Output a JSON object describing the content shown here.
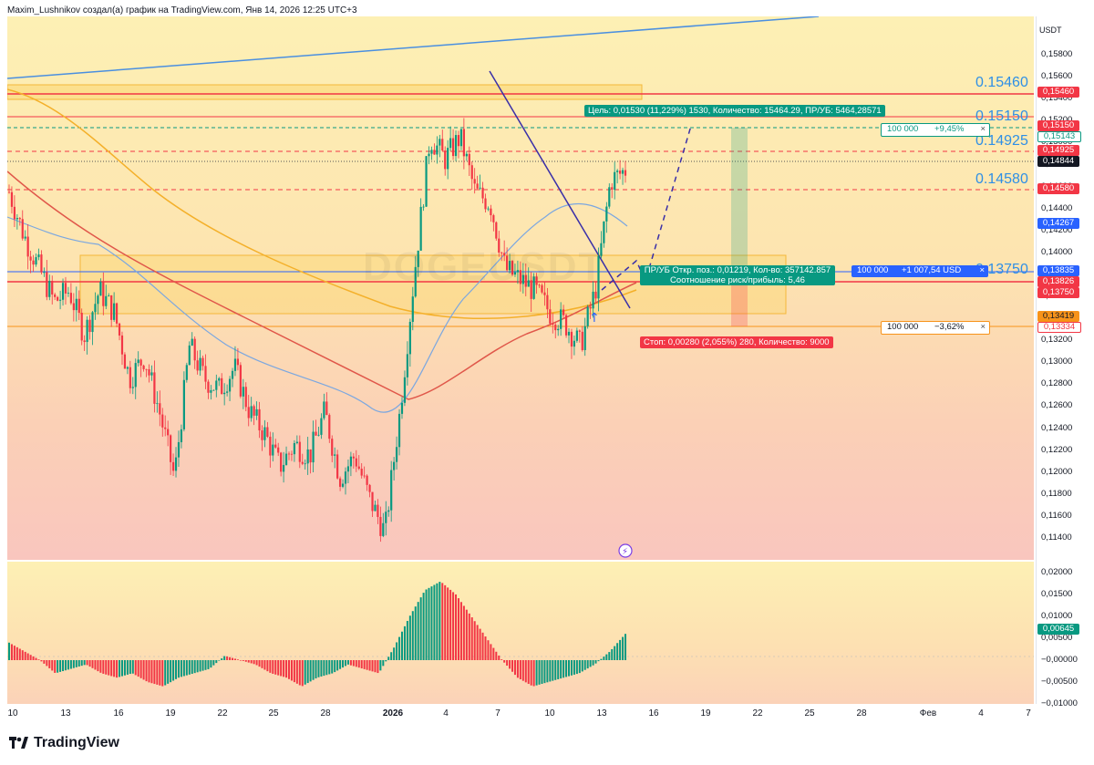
{
  "header": {
    "title": "Maxim_Lushnikov создал(а) график на TradingView.com, Янв 14, 2026 12:25 UTC+3"
  },
  "chart_data": {
    "type": "candlestick",
    "unit": "USDT",
    "ylim": [
      0.113,
      0.161
    ],
    "y_ticks": [
      "0,15800",
      "0,15600",
      "0,15400",
      "0,15200",
      "0,15000",
      "0,14800",
      "0,14600",
      "0,14400",
      "0,14200",
      "0,14000",
      "0,13800",
      "0,13600",
      "0,13400",
      "0,13200",
      "0,13000",
      "0,12800",
      "0,12600",
      "0,12400",
      "0,12200",
      "0,12000",
      "0,11800",
      "0,11600",
      "0,11400"
    ],
    "x_ticks": [
      "10",
      "13",
      "16",
      "19",
      "22",
      "25",
      "28",
      "2026",
      "4",
      "7",
      "10",
      "13",
      "16",
      "19",
      "22",
      "25",
      "28",
      "Фев",
      "4",
      "7"
    ],
    "close_path": [
      0.147,
      0.143,
      0.14,
      0.137,
      0.138,
      0.134,
      0.138,
      0.136,
      0.13,
      0.132,
      0.127,
      0.121,
      0.133,
      0.13,
      0.129,
      0.131,
      0.127,
      0.125,
      0.122,
      0.124,
      0.123,
      0.127,
      0.121,
      0.123,
      0.119,
      0.116,
      0.127,
      0.14,
      0.152,
      0.15,
      0.152,
      0.147,
      0.146,
      0.14,
      0.139,
      0.138,
      0.136,
      0.135,
      0.133,
      0.138,
      0.148,
      0.149
    ],
    "price_labels": [
      {
        "text": "0,15460",
        "bg": "#f23645",
        "fg": "#ffffff",
        "value": 0.1546
      },
      {
        "text": "0,15150",
        "bg": "#f23645",
        "fg": "#ffffff",
        "value": 0.1515
      },
      {
        "text": "0,15143",
        "bg": "#ffffff",
        "fg": "#089981",
        "value": 0.15143
      },
      {
        "text": "0,14925",
        "bg": "#f23645",
        "fg": "#ffffff",
        "value": 0.14925
      },
      {
        "text": "0,14844",
        "bg": "#131722",
        "fg": "#ffffff",
        "value": 0.14844
      },
      {
        "text": "0,14580",
        "bg": "#f23645",
        "fg": "#ffffff",
        "value": 0.1458
      },
      {
        "text": "0,14267",
        "bg": "#2962ff",
        "fg": "#ffffff",
        "value": 0.14267
      },
      {
        "text": "0,13835",
        "bg": "#2962ff",
        "fg": "#ffffff",
        "value": 0.13835
      },
      {
        "text": "0,13826",
        "bg": "#f23645",
        "fg": "#ffffff",
        "value": 0.13826
      },
      {
        "text": "0,13750",
        "bg": "#f23645",
        "fg": "#ffffff",
        "value": 0.1375
      },
      {
        "text": "0,13419",
        "bg": "#f7931a",
        "fg": "#131722",
        "value": 0.13419
      },
      {
        "text": "0,13334",
        "bg": "#ffffff",
        "fg": "#f23645",
        "value": 0.13334
      }
    ],
    "levels": [
      {
        "text": "0.15460",
        "value": 0.1546
      },
      {
        "text": "0.15150",
        "value": 0.1515
      },
      {
        "text": "0.14925",
        "value": 0.14925
      },
      {
        "text": "0.14580",
        "value": 0.1458
      },
      {
        "text": "0.13750",
        "value": 0.1375
      }
    ],
    "indicator": {
      "ylim": [
        -0.011,
        0.021
      ],
      "y_ticks": [
        "0,02000",
        "0,01500",
        "0,01000",
        "0,00500",
        "−0,00000",
        "−0,00500",
        "−0,01000"
      ],
      "last_label": "0,00645",
      "values": [
        0.004,
        0.002,
        0.0,
        -0.003,
        -0.002,
        -0.001,
        -0.003,
        -0.004,
        -0.003,
        -0.005,
        -0.006,
        -0.004,
        -0.003,
        -0.002,
        0.001,
        0.0,
        -0.001,
        -0.003,
        -0.004,
        -0.006,
        -0.004,
        -0.003,
        -0.001,
        -0.002,
        -0.003,
        0.003,
        0.01,
        0.016,
        0.018,
        0.015,
        0.01,
        0.005,
        0.0,
        -0.004,
        -0.006,
        -0.005,
        -0.004,
        -0.003,
        -0.001,
        0.002,
        0.006
      ]
    }
  },
  "annotations": {
    "target": "Цель: 0,01530 (11,229%) 1530, Количество: 15464.29, ПР/УБ: 5464,28571",
    "tp_qty": "100 000",
    "tp_pct": "+9,45%",
    "position_line1": "ПР/УБ Откр. поз.: 0,01219, Кол-во: 357142.857",
    "position_line2": "Соотношение риск/прибыль: 5,46",
    "pos_qty": "100 000",
    "pos_pnl": "+1 007,54 USD",
    "stop": "Стоп: 0,00280 (2,055%) 280, Количество: 9000",
    "sl_qty": "100 000",
    "sl_pct": "−3,62%",
    "close_x": "×",
    "watermark": "DOGEUSDT"
  },
  "branding": {
    "name": "TradingView"
  },
  "colors": {
    "up": "#089981",
    "down": "#f23645",
    "blue": "#2962ff",
    "level": "#2e8fe6",
    "orange": "#f7931a"
  }
}
